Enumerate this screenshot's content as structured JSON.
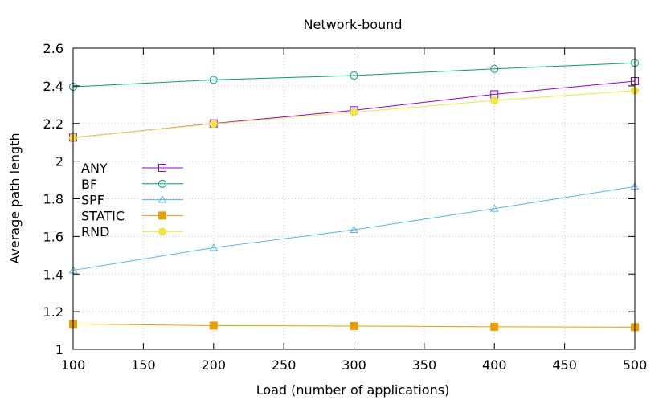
{
  "chart_data": {
    "type": "line",
    "title": "Network-bound",
    "xlabel": "Load (number of applications)",
    "ylabel": "Average path length",
    "x": [
      100,
      200,
      300,
      400,
      500
    ],
    "xlim": [
      100,
      500
    ],
    "ylim": [
      1,
      2.6
    ],
    "xticks": [
      100,
      150,
      200,
      250,
      300,
      350,
      400,
      450,
      500
    ],
    "yticks": [
      1,
      1.2,
      1.4,
      1.6,
      1.8,
      2,
      2.2,
      2.4,
      2.6
    ],
    "ytick_labels": [
      "1",
      "1.2",
      "1.4",
      "1.6",
      "1.8",
      "2",
      "2.2",
      "2.4",
      "2.6"
    ],
    "grid": true,
    "legend_position": "left",
    "series": [
      {
        "name": "ANY",
        "values": [
          2.125,
          2.2,
          2.27,
          2.355,
          2.425
        ],
        "color": "#9400d3",
        "marker": "square-open"
      },
      {
        "name": "BF",
        "values": [
          2.395,
          2.432,
          2.455,
          2.49,
          2.522
        ],
        "color": "#009e73",
        "marker": "circle-open"
      },
      {
        "name": "SPF",
        "values": [
          1.42,
          1.54,
          1.635,
          1.748,
          1.865
        ],
        "color": "#56b4e9",
        "marker": "triangle-open"
      },
      {
        "name": "STATIC",
        "values": [
          1.135,
          1.126,
          1.124,
          1.12,
          1.118
        ],
        "color": "#e69f00",
        "marker": "square-filled"
      },
      {
        "name": "RND",
        "values": [
          2.125,
          2.198,
          2.26,
          2.322,
          2.375
        ],
        "color": "#f0e442",
        "marker": "circle-filled"
      }
    ]
  }
}
